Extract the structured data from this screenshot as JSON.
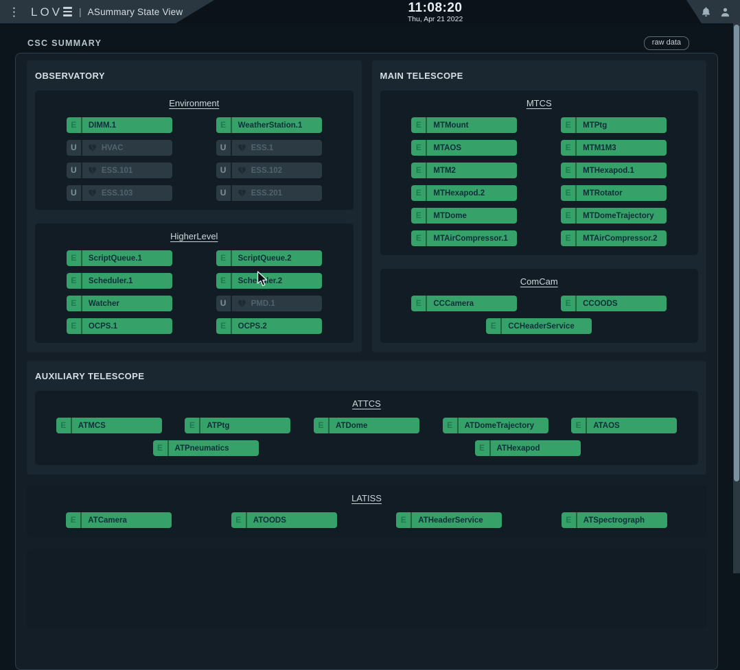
{
  "colors": {
    "green": "#36a269",
    "green_letter": "#1d7a4e",
    "unknown_bg": "#2b3a43",
    "section_bg": "#1a2630",
    "box_bg": "#121c24"
  },
  "header": {
    "logo": "LOV",
    "separator": "|",
    "title": "ASummary State View",
    "clock": {
      "time": "11:08:20",
      "date": "Thu, Apr 21 2022"
    }
  },
  "page": {
    "title": "CSC SUMMARY",
    "raw_data_label": "raw data"
  },
  "sections": {
    "observatory": {
      "title": "OBSERVATORY",
      "groups": [
        {
          "title": "Environment",
          "rows": [
            {
              "cols": 2,
              "badges": [
                {
                  "csc": "DIMM.1",
                  "state": "E"
                },
                {
                  "csc": "WeatherStation.1",
                  "state": "E"
                }
              ]
            },
            {
              "cols": 2,
              "badges": [
                {
                  "csc": "HVAC",
                  "state": "U"
                },
                {
                  "csc": "ESS.1",
                  "state": "U"
                }
              ]
            },
            {
              "cols": 2,
              "badges": [
                {
                  "csc": "ESS.101",
                  "state": "U"
                },
                {
                  "csc": "ESS.102",
                  "state": "U"
                }
              ]
            },
            {
              "cols": 2,
              "badges": [
                {
                  "csc": "ESS.103",
                  "state": "U"
                },
                {
                  "csc": "ESS.201",
                  "state": "U"
                }
              ]
            }
          ]
        },
        {
          "title": "HigherLevel",
          "rows": [
            {
              "cols": 2,
              "badges": [
                {
                  "csc": "ScriptQueue.1",
                  "state": "E"
                },
                {
                  "csc": "ScriptQueue.2",
                  "state": "E"
                }
              ]
            },
            {
              "cols": 2,
              "badges": [
                {
                  "csc": "Scheduler.1",
                  "state": "E"
                },
                {
                  "csc": "Scheduler.2",
                  "state": "E"
                }
              ]
            },
            {
              "cols": 2,
              "badges": [
                {
                  "csc": "Watcher",
                  "state": "E"
                },
                {
                  "csc": "PMD.1",
                  "state": "U"
                }
              ]
            },
            {
              "cols": 2,
              "badges": [
                {
                  "csc": "OCPS.1",
                  "state": "E"
                },
                {
                  "csc": "OCPS.2",
                  "state": "E"
                }
              ]
            }
          ]
        }
      ]
    },
    "main_telescope": {
      "title": "MAIN TELESCOPE",
      "groups": [
        {
          "title": "MTCS",
          "rows": [
            {
              "cols": 2,
              "badges": [
                {
                  "csc": "MTMount",
                  "state": "E"
                },
                {
                  "csc": "MTPtg",
                  "state": "E"
                }
              ]
            },
            {
              "cols": 2,
              "badges": [
                {
                  "csc": "MTAOS",
                  "state": "E"
                },
                {
                  "csc": "MTM1M3",
                  "state": "E"
                }
              ]
            },
            {
              "cols": 2,
              "badges": [
                {
                  "csc": "MTM2",
                  "state": "E"
                },
                {
                  "csc": "MTHexapod.1",
                  "state": "E"
                }
              ]
            },
            {
              "cols": 2,
              "badges": [
                {
                  "csc": "MTHexapod.2",
                  "state": "E"
                },
                {
                  "csc": "MTRotator",
                  "state": "E"
                }
              ]
            },
            {
              "cols": 2,
              "badges": [
                {
                  "csc": "MTDome",
                  "state": "E"
                },
                {
                  "csc": "MTDomeTrajectory",
                  "state": "E"
                }
              ]
            },
            {
              "cols": 2,
              "badges": [
                {
                  "csc": "MTAirCompressor.1",
                  "state": "E"
                },
                {
                  "csc": "MTAirCompressor.2",
                  "state": "E"
                }
              ]
            }
          ]
        },
        {
          "title": "ComCam",
          "rows": [
            {
              "cols": 2,
              "badges": [
                {
                  "csc": "CCCamera",
                  "state": "E"
                },
                {
                  "csc": "CCOODS",
                  "state": "E"
                }
              ]
            },
            {
              "cols": 1,
              "badges": [
                {
                  "csc": "CCHeaderService",
                  "state": "E"
                }
              ]
            }
          ]
        }
      ]
    },
    "aux_telescope": {
      "title": "AUXILIARY TELESCOPE",
      "groups": [
        {
          "title": "ATTCS",
          "rows": [
            {
              "cols": 5,
              "badges": [
                {
                  "csc": "ATMCS",
                  "state": "E"
                },
                {
                  "csc": "ATPtg",
                  "state": "E"
                },
                {
                  "csc": "ATDome",
                  "state": "E"
                },
                {
                  "csc": "ATDomeTrajectory",
                  "state": "E"
                },
                {
                  "csc": "ATAOS",
                  "state": "E"
                }
              ]
            },
            {
              "cols": 2,
              "badges": [
                {
                  "csc": "ATPneumatics",
                  "state": "E"
                },
                {
                  "csc": "ATHexapod",
                  "state": "E"
                }
              ]
            }
          ]
        }
      ]
    },
    "latiss": {
      "groups": [
        {
          "title": "LATISS",
          "rows": [
            {
              "cols": 4,
              "badges": [
                {
                  "csc": "ATCamera",
                  "state": "E"
                },
                {
                  "csc": "ATOODS",
                  "state": "E"
                },
                {
                  "csc": "ATHeaderService",
                  "state": "E"
                },
                {
                  "csc": "ATSpectrograph",
                  "state": "E"
                }
              ]
            }
          ]
        }
      ]
    }
  }
}
